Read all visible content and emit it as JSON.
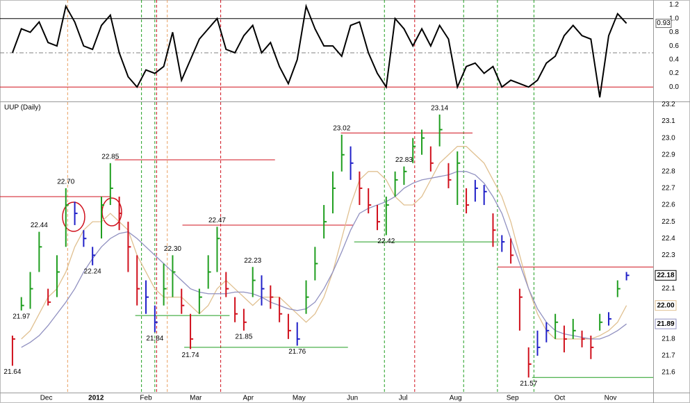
{
  "chart_data": {
    "type": "ohlc",
    "title": "UUP (Daily)",
    "xlim": [
      -1.4,
      72
    ],
    "xticks": [
      {
        "value": 3.8,
        "label": "Dec"
      },
      {
        "value": 9.4,
        "label": "2012"
      },
      {
        "value": 15.0,
        "label": "Feb"
      },
      {
        "value": 20.6,
        "label": "Mar"
      },
      {
        "value": 26.5,
        "label": "Apr"
      },
      {
        "value": 32.2,
        "label": "May"
      },
      {
        "value": 38.2,
        "label": "Jun"
      },
      {
        "value": 43.9,
        "label": "Jul"
      },
      {
        "value": 49.8,
        "label": "Aug"
      },
      {
        "value": 56.2,
        "label": "Sep"
      },
      {
        "value": 61.5,
        "label": "Oct"
      },
      {
        "value": 67.2,
        "label": "Nov"
      }
    ],
    "ylim": [
      21.48,
      23.21
    ],
    "yticks": [
      23.2,
      23.1,
      {
        "value": 23.0,
        "label": "23.0"
      },
      22.9,
      22.8,
      22.7,
      22.6,
      22.5,
      22.4,
      22.3,
      22.1,
      21.8,
      21.7,
      21.6
    ],
    "palette": {
      "g": "#1f9e1f",
      "r": "#d0101c",
      "b": "#2020c8"
    },
    "bar_colors": [
      "r",
      "g",
      "g",
      "g",
      "r",
      "g",
      "g",
      "b",
      "b",
      "b",
      "g",
      "g",
      "r",
      "r",
      "r",
      "b",
      "b",
      "g",
      "g",
      "r",
      "r",
      "g",
      "g",
      "g",
      "r",
      "r",
      "r",
      "g",
      "b",
      "r",
      "r",
      "r",
      "b",
      "g",
      "g",
      "g",
      "g",
      "g",
      "b",
      "r",
      "r",
      "r",
      "g",
      "g",
      "g",
      "g",
      "g",
      "r",
      "g",
      "r",
      "g",
      "r",
      "b",
      "b",
      "r",
      "b",
      "r",
      "r",
      "r",
      "b",
      "b",
      "g",
      "r",
      "g",
      "r",
      "r",
      "g",
      "b",
      "g",
      "b"
    ],
    "high": [
      21.82,
      22.05,
      22.2,
      22.44,
      22.1,
      22.3,
      22.7,
      22.62,
      22.45,
      22.35,
      22.65,
      22.85,
      22.65,
      22.5,
      22.3,
      22.15,
      22.0,
      22.25,
      22.3,
      22.1,
      21.95,
      22.1,
      22.3,
      22.47,
      22.2,
      22.05,
      21.98,
      22.23,
      22.18,
      22.12,
      22.05,
      21.95,
      21.9,
      22.15,
      22.35,
      22.6,
      22.8,
      23.02,
      22.95,
      22.8,
      22.7,
      22.6,
      22.65,
      22.8,
      22.83,
      23.0,
      23.05,
      22.95,
      23.14,
      22.85,
      22.92,
      22.7,
      22.75,
      22.72,
      22.55,
      22.42,
      22.4,
      22.1,
      21.75,
      21.85,
      21.9,
      21.95,
      21.88,
      21.92,
      21.85,
      21.82,
      21.95,
      21.96,
      22.15,
      22.2
    ],
    "low": [
      21.64,
      21.97,
      21.98,
      22.2,
      22.0,
      22.05,
      22.35,
      22.48,
      22.35,
      22.24,
      22.4,
      22.6,
      22.45,
      22.2,
      22.0,
      21.95,
      21.84,
      22.0,
      22.05,
      21.95,
      21.74,
      21.95,
      22.1,
      22.2,
      22.05,
      21.9,
      21.85,
      22.05,
      22.0,
      21.98,
      21.9,
      21.8,
      21.76,
      21.95,
      22.15,
      22.4,
      22.55,
      22.8,
      22.75,
      22.6,
      22.55,
      22.45,
      22.42,
      22.65,
      22.72,
      22.85,
      22.9,
      22.8,
      22.95,
      22.7,
      22.6,
      22.55,
      22.62,
      22.6,
      22.35,
      22.32,
      22.25,
      21.85,
      21.57,
      21.7,
      21.78,
      21.8,
      21.72,
      21.8,
      21.75,
      21.68,
      21.85,
      21.88,
      22.05,
      22.15
    ],
    "close": [
      21.8,
      22.0,
      22.1,
      22.35,
      22.02,
      22.2,
      22.6,
      22.55,
      22.4,
      22.3,
      22.6,
      22.7,
      22.55,
      22.35,
      22.1,
      22.05,
      21.9,
      22.1,
      22.2,
      22.0,
      21.8,
      22.05,
      22.2,
      22.4,
      22.1,
      21.95,
      21.9,
      22.15,
      22.1,
      22.05,
      21.95,
      21.85,
      21.8,
      22.05,
      22.25,
      22.5,
      22.7,
      22.9,
      22.85,
      22.7,
      22.6,
      22.5,
      22.6,
      22.75,
      22.8,
      22.95,
      23.0,
      22.85,
      23.05,
      22.75,
      22.85,
      22.6,
      22.7,
      22.68,
      22.45,
      22.38,
      22.3,
      22.05,
      21.65,
      21.75,
      21.85,
      21.9,
      21.8,
      21.85,
      21.8,
      21.75,
      21.9,
      21.92,
      22.1,
      22.18
    ],
    "last_label": {
      "value": 22.18,
      "label": "22.18"
    },
    "series": [
      {
        "name": "MA fast",
        "color": "#e0c090",
        "values": [
          null,
          21.8,
          21.85,
          21.95,
          22.05,
          22.1,
          22.2,
          22.35,
          22.45,
          22.5,
          22.5,
          22.55,
          22.5,
          22.45,
          22.3,
          22.2,
          22.1,
          22.05,
          22.05,
          22.05,
          22.0,
          21.95,
          22.0,
          22.1,
          22.15,
          22.1,
          22.05,
          22.0,
          22.05,
          22.05,
          22.05,
          22.0,
          21.95,
          21.9,
          21.95,
          22.05,
          22.2,
          22.4,
          22.6,
          22.75,
          22.8,
          22.8,
          22.75,
          22.65,
          22.6,
          22.6,
          22.65,
          22.75,
          22.85,
          22.9,
          22.95,
          22.95,
          22.9,
          22.85,
          22.75,
          22.65,
          22.5,
          22.3,
          22.1,
          21.95,
          21.85,
          21.8,
          21.8,
          21.8,
          21.8,
          21.8,
          21.82,
          21.85,
          21.9,
          22.0
        ],
        "last_label": {
          "value": 22.0,
          "label": "22.00"
        }
      },
      {
        "name": "MA slow",
        "color": "#9090c0",
        "values": [
          null,
          21.75,
          21.78,
          21.82,
          21.88,
          21.95,
          22.02,
          22.1,
          22.2,
          22.28,
          22.35,
          22.4,
          22.43,
          22.44,
          22.4,
          22.35,
          22.3,
          22.25,
          22.2,
          22.15,
          22.1,
          22.08,
          22.07,
          22.07,
          22.07,
          22.08,
          22.08,
          22.07,
          22.05,
          22.02,
          22.0,
          21.98,
          21.97,
          21.98,
          22.02,
          22.1,
          22.2,
          22.32,
          22.45,
          22.55,
          22.58,
          22.6,
          22.62,
          22.65,
          22.7,
          22.73,
          22.75,
          22.76,
          22.77,
          22.78,
          22.8,
          22.8,
          22.78,
          22.73,
          22.65,
          22.55,
          22.4,
          22.25,
          22.1,
          21.98,
          21.9,
          21.85,
          21.83,
          21.82,
          21.81,
          21.8,
          21.8,
          21.82,
          21.85,
          21.89
        ],
        "last_label": {
          "value": 21.89,
          "label": "21.89"
        }
      }
    ],
    "annotations": [
      {
        "bar": 0,
        "value": 21.64,
        "label": "21.64",
        "pos": "below"
      },
      {
        "bar": 1,
        "value": 21.97,
        "label": "21.97",
        "pos": "below"
      },
      {
        "bar": 3,
        "value": 22.44,
        "label": "22.44",
        "pos": "above"
      },
      {
        "bar": 6,
        "value": 22.7,
        "label": "22.70",
        "pos": "above"
      },
      {
        "bar": 9,
        "value": 22.24,
        "label": "22.24",
        "pos": "below"
      },
      {
        "bar": 11,
        "value": 22.85,
        "label": "22.85",
        "pos": "above"
      },
      {
        "bar": 16,
        "value": 21.84,
        "label": "21.84",
        "pos": "below"
      },
      {
        "bar": 18,
        "value": 22.3,
        "label": "22.30",
        "pos": "above"
      },
      {
        "bar": 20,
        "value": 21.74,
        "label": "21.74",
        "pos": "below"
      },
      {
        "bar": 23,
        "value": 22.47,
        "label": "22.47",
        "pos": "above"
      },
      {
        "bar": 26,
        "value": 21.85,
        "label": "21.85",
        "pos": "below"
      },
      {
        "bar": 27,
        "value": 22.23,
        "label": "22.23",
        "pos": "above"
      },
      {
        "bar": 32,
        "value": 21.76,
        "label": "21.76",
        "pos": "below"
      },
      {
        "bar": 37,
        "value": 23.02,
        "label": "23.02",
        "pos": "above"
      },
      {
        "bar": 42,
        "value": 22.42,
        "label": "22.42",
        "pos": "below"
      },
      {
        "bar": 44,
        "value": 22.83,
        "label": "22.83",
        "pos": "above"
      },
      {
        "bar": 48,
        "value": 23.14,
        "label": "23.14",
        "pos": "above"
      },
      {
        "bar": 58,
        "value": 21.57,
        "label": "21.57",
        "pos": "below"
      }
    ],
    "levels": [
      {
        "value": 22.65,
        "color": "#d0101c",
        "x": [
          -1.4,
          11.1
        ]
      },
      {
        "value": 22.87,
        "color": "#d0101c",
        "x": [
          11.5,
          29.5
        ]
      },
      {
        "value": 22.48,
        "color": "#d0101c",
        "x": [
          19.1,
          38.3
        ]
      },
      {
        "value": 23.03,
        "color": "#d0101c",
        "x": [
          36.9,
          51.7
        ]
      },
      {
        "value": 22.23,
        "color": "#d0101c",
        "x": [
          54.5,
          72
        ]
      },
      {
        "value": 21.94,
        "color": "#1f9e1f",
        "x": [
          13.8,
          24.4
        ]
      },
      {
        "value": 21.75,
        "color": "#1f9e1f",
        "x": [
          19.3,
          37.7
        ]
      },
      {
        "value": 22.38,
        "color": "#1f9e1f",
        "x": [
          38.4,
          54.7
        ]
      },
      {
        "value": 21.57,
        "color": "#1f9e1f",
        "x": [
          58.4,
          72
        ]
      }
    ],
    "vlines": [
      {
        "x": 6.2,
        "color": "#e8a060"
      },
      {
        "x": 17.4,
        "color": "#e8a060"
      },
      {
        "x": 14.5,
        "color": "#1f9e1f"
      },
      {
        "x": 16.0,
        "color": "#1f9e1f"
      },
      {
        "x": 41.8,
        "color": "#1f9e1f"
      },
      {
        "x": 50.7,
        "color": "#1f9e1f"
      },
      {
        "x": 54.5,
        "color": "#1f9e1f"
      },
      {
        "x": 58.6,
        "color": "#1f9e1f"
      },
      {
        "x": 16.2,
        "color": "#d0101c"
      },
      {
        "x": 23.4,
        "color": "#d0101c"
      },
      {
        "x": 45.2,
        "color": "#d0101c"
      }
    ],
    "indicator": {
      "ylim": [
        -0.2,
        1.22
      ],
      "yticks": [
        1.2,
        {
          "value": 1.0,
          "label": "1.0"
        },
        0.8,
        0.6,
        0.4,
        0.2,
        {
          "value": 0.0,
          "label": "0.0"
        }
      ],
      "lines": [
        {
          "value": 1.0,
          "color": "#000000"
        },
        {
          "value": 0.5,
          "color": "#808080"
        },
        {
          "value": 0.0,
          "color": "#d0101c"
        }
      ],
      "color": "#000000",
      "values": [
        0.5,
        0.85,
        0.8,
        0.95,
        0.65,
        0.6,
        1.18,
        0.95,
        0.6,
        0.55,
        0.9,
        1.05,
        0.5,
        0.15,
        0.0,
        0.25,
        0.2,
        0.3,
        0.8,
        0.1,
        0.4,
        0.7,
        0.85,
        1.0,
        0.55,
        0.5,
        0.75,
        0.9,
        0.5,
        0.65,
        0.3,
        0.05,
        0.4,
        1.18,
        0.85,
        0.6,
        0.6,
        0.45,
        0.9,
        0.95,
        0.5,
        0.2,
        0.0,
        1.0,
        0.85,
        0.6,
        0.85,
        0.6,
        0.9,
        0.7,
        0.0,
        0.3,
        0.35,
        0.2,
        0.3,
        0.0,
        0.1,
        0.05,
        0.0,
        0.1,
        0.35,
        0.45,
        0.75,
        0.9,
        0.75,
        0.7,
        -0.15,
        0.75,
        1.07,
        0.93
      ],
      "last_label": 0.93
    }
  }
}
